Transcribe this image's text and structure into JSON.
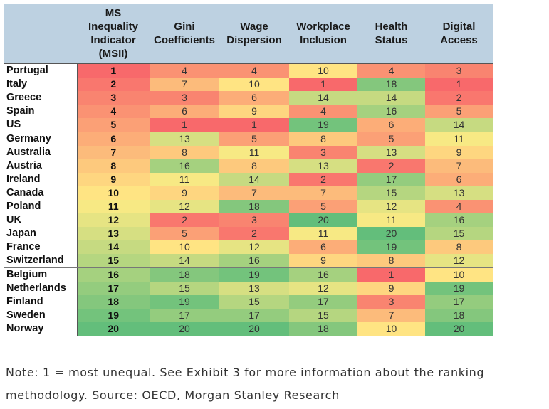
{
  "chart_data": {
    "type": "heatmap",
    "columns": [
      "MS Inequality Indicator (MSII)",
      "Gini Coefficients",
      "Wage Dispersion",
      "Workplace Inclusion",
      "Health Status",
      "Digital Access"
    ],
    "column_headers": [
      [
        "MS",
        "Inequality",
        "Indicator",
        "(MSII)"
      ],
      [
        "Gini",
        "Coefficients"
      ],
      [
        "Wage",
        "Dispersion"
      ],
      [
        "Workplace",
        "Inclusion"
      ],
      [
        "Health",
        "Status"
      ],
      [
        "Digital",
        "Access"
      ]
    ],
    "rows": [
      "Portugal",
      "Italy",
      "Greece",
      "Spain",
      "US",
      "Germany",
      "Australia",
      "Austria",
      "Ireland",
      "Canada",
      "Poland",
      "UK",
      "Japan",
      "France",
      "Switzerland",
      "Belgium",
      "Netherlands",
      "Finland",
      "Sweden",
      "Norway"
    ],
    "values": [
      [
        1,
        4,
        4,
        10,
        4,
        3
      ],
      [
        2,
        7,
        10,
        1,
        18,
        1
      ],
      [
        3,
        3,
        6,
        14,
        14,
        2
      ],
      [
        4,
        6,
        9,
        4,
        16,
        5
      ],
      [
        5,
        1,
        1,
        19,
        6,
        14
      ],
      [
        6,
        13,
        5,
        8,
        5,
        11
      ],
      [
        7,
        8,
        11,
        3,
        13,
        9
      ],
      [
        8,
        16,
        8,
        13,
        2,
        7
      ],
      [
        9,
        11,
        14,
        2,
        17,
        6
      ],
      [
        10,
        9,
        7,
        7,
        15,
        13
      ],
      [
        11,
        12,
        18,
        5,
        12,
        4
      ],
      [
        12,
        2,
        3,
        20,
        11,
        16
      ],
      [
        13,
        5,
        2,
        11,
        20,
        15
      ],
      [
        14,
        10,
        12,
        6,
        19,
        8
      ],
      [
        15,
        14,
        16,
        9,
        8,
        12
      ],
      [
        16,
        18,
        19,
        16,
        1,
        10
      ],
      [
        17,
        15,
        13,
        12,
        9,
        19
      ],
      [
        18,
        19,
        15,
        17,
        3,
        17
      ],
      [
        19,
        17,
        17,
        15,
        7,
        18
      ],
      [
        20,
        20,
        20,
        18,
        10,
        20
      ]
    ],
    "value_range": [
      1,
      20
    ],
    "color_scale": {
      "low": "#f8696b",
      "mid": "#ffeb84",
      "high": "#63be7b"
    },
    "group_breaks_after_row": [
      4,
      14
    ]
  },
  "note": "Note: 1 = most unequal. See Exhibit 3 for more information about the ranking methodology. Source: OECD, Morgan Stanley Research"
}
